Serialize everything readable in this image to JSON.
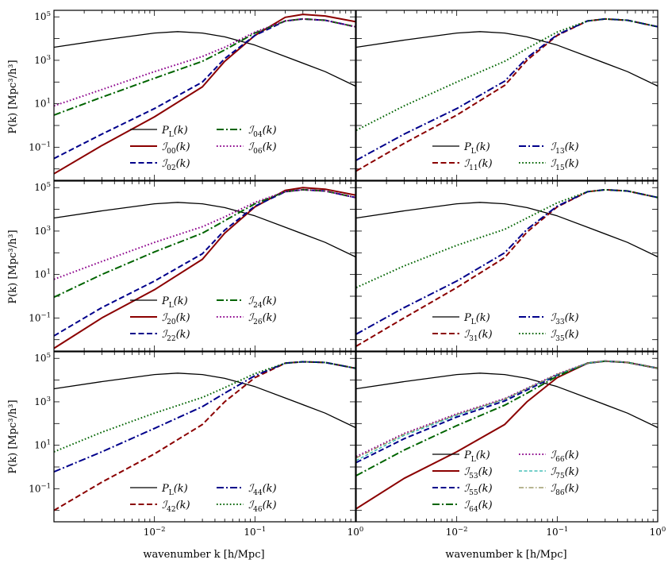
{
  "figure": {
    "x_label": "wavenumber k [h/Mpc]",
    "y_label": "P(k) [Mpc³/h³]",
    "x_ticks": [
      "10-2",
      "10-1",
      "100"
    ],
    "y_ticks": [
      "10-1",
      "101",
      "103",
      "105"
    ]
  },
  "chart_data": [
    {
      "type": "line",
      "panel": "top-left",
      "xscale": "log",
      "yscale": "log",
      "xlim": [
        0.001,
        1
      ],
      "ylim": [
        0.003,
        200000
      ],
      "legend_ncol": 2,
      "series": [
        {
          "name": "P_L(k)",
          "label_main": "P",
          "label_sub": "L",
          "style": "solid",
          "color": "#000000",
          "x": [
            0.001,
            0.003,
            0.01,
            0.017,
            0.03,
            0.05,
            0.1,
            0.2,
            0.5,
            1
          ],
          "y": [
            4000,
            8500,
            18000,
            21000,
            18000,
            12000,
            5000,
            1500,
            300,
            65
          ]
        },
        {
          "name": "I00(k)",
          "label_main": "ℐ",
          "label_sub": "00",
          "style": "solid",
          "color": "#8b0000",
          "x": [
            0.001,
            0.003,
            0.01,
            0.03,
            0.05,
            0.1,
            0.2,
            0.3,
            0.5,
            1
          ],
          "y": [
            0.006,
            0.12,
            2.5,
            60,
            900,
            14000,
            95000,
            130000,
            110000,
            60000
          ]
        },
        {
          "name": "I02(k)",
          "label_main": "ℐ",
          "label_sub": "02",
          "style": "dashed",
          "color": "#00008b",
          "x": [
            0.001,
            0.003,
            0.01,
            0.03,
            0.05,
            0.1,
            0.2,
            0.3,
            0.5,
            1
          ],
          "y": [
            0.03,
            0.4,
            6,
            100,
            1200,
            14000,
            65000,
            80000,
            70000,
            35000
          ]
        },
        {
          "name": "I04(k)",
          "label_main": "ℐ",
          "label_sub": "04",
          "style": "dashdot",
          "color": "#006400",
          "x": [
            0.001,
            0.003,
            0.01,
            0.03,
            0.05,
            0.1,
            0.2,
            0.3,
            0.5,
            1
          ],
          "y": [
            3,
            20,
            150,
            900,
            3000,
            18000,
            65000,
            80000,
            70000,
            35000
          ]
        },
        {
          "name": "I06(k)",
          "label_main": "ℐ",
          "label_sub": "06",
          "style": "dotted",
          "color": "#8b008b",
          "x": [
            0.001,
            0.003,
            0.01,
            0.03,
            0.05,
            0.1,
            0.2,
            0.3,
            0.5,
            1
          ],
          "y": [
            8,
            45,
            300,
            1500,
            4000,
            20000,
            65000,
            80000,
            70000,
            35000
          ]
        }
      ]
    },
    {
      "type": "line",
      "panel": "top-right",
      "xscale": "log",
      "yscale": "log",
      "xlim": [
        0.001,
        1
      ],
      "ylim": [
        0.003,
        200000
      ],
      "legend_ncol": 2,
      "series": [
        {
          "name": "P_L(k)",
          "label_main": "P",
          "label_sub": "L",
          "style": "solid",
          "color": "#000000",
          "x": [
            0.001,
            0.003,
            0.01,
            0.017,
            0.03,
            0.05,
            0.1,
            0.2,
            0.5,
            1
          ],
          "y": [
            4000,
            8500,
            18000,
            21000,
            18000,
            12000,
            5000,
            1500,
            300,
            65
          ]
        },
        {
          "name": "I11(k)",
          "label_main": "ℐ",
          "label_sub": "11",
          "style": "dashed",
          "color": "#8b0000",
          "x": [
            0.001,
            0.003,
            0.01,
            0.03,
            0.05,
            0.1,
            0.2,
            0.3,
            0.5,
            1
          ],
          "y": [
            0.008,
            0.15,
            3,
            70,
            1000,
            14000,
            65000,
            80000,
            70000,
            35000
          ]
        },
        {
          "name": "I13(k)",
          "label_main": "ℐ",
          "label_sub": "13",
          "style": "dashdot",
          "color": "#00008b",
          "x": [
            0.001,
            0.003,
            0.01,
            0.03,
            0.05,
            0.1,
            0.2,
            0.3,
            0.5,
            1
          ],
          "y": [
            0.025,
            0.4,
            6,
            110,
            1300,
            15000,
            65000,
            80000,
            70000,
            35000
          ]
        },
        {
          "name": "I15(k)",
          "label_main": "ℐ",
          "label_sub": "15",
          "style": "dotted",
          "color": "#006400",
          "x": [
            0.001,
            0.003,
            0.01,
            0.03,
            0.05,
            0.1,
            0.2,
            0.3,
            0.5,
            1
          ],
          "y": [
            0.6,
            8,
            100,
            900,
            3500,
            20000,
            65000,
            80000,
            70000,
            35000
          ]
        }
      ]
    },
    {
      "type": "line",
      "panel": "middle-left",
      "xscale": "log",
      "yscale": "log",
      "xlim": [
        0.001,
        1
      ],
      "ylim": [
        0.003,
        200000
      ],
      "legend_ncol": 2,
      "series": [
        {
          "name": "P_L(k)",
          "label_main": "P",
          "label_sub": "L",
          "style": "solid",
          "color": "#000000",
          "x": [
            0.001,
            0.003,
            0.01,
            0.017,
            0.03,
            0.05,
            0.1,
            0.2,
            0.5,
            1
          ],
          "y": [
            4000,
            8500,
            18000,
            21000,
            18000,
            12000,
            5000,
            1500,
            300,
            65
          ]
        },
        {
          "name": "I20(k)",
          "label_main": "ℐ",
          "label_sub": "20",
          "style": "solid",
          "color": "#8b0000",
          "x": [
            0.001,
            0.003,
            0.01,
            0.03,
            0.05,
            0.1,
            0.2,
            0.3,
            0.5,
            1
          ],
          "y": [
            0.004,
            0.1,
            2,
            50,
            800,
            13000,
            75000,
            100000,
            85000,
            45000
          ]
        },
        {
          "name": "I22(k)",
          "label_main": "ℐ",
          "label_sub": "22",
          "style": "dashed",
          "color": "#00008b",
          "x": [
            0.001,
            0.003,
            0.01,
            0.03,
            0.05,
            0.1,
            0.2,
            0.3,
            0.5,
            1
          ],
          "y": [
            0.015,
            0.3,
            5,
            90,
            1100,
            14000,
            65000,
            80000,
            70000,
            35000
          ]
        },
        {
          "name": "I24(k)",
          "label_main": "ℐ",
          "label_sub": "24",
          "style": "dashdot",
          "color": "#006400",
          "x": [
            0.001,
            0.003,
            0.01,
            0.03,
            0.05,
            0.1,
            0.2,
            0.3,
            0.5,
            1
          ],
          "y": [
            0.9,
            10,
            110,
            800,
            3000,
            18000,
            65000,
            80000,
            70000,
            35000
          ]
        },
        {
          "name": "I26(k)",
          "label_main": "ℐ",
          "label_sub": "26",
          "style": "dotted",
          "color": "#8b008b",
          "x": [
            0.001,
            0.003,
            0.01,
            0.03,
            0.05,
            0.1,
            0.2,
            0.3,
            0.5,
            1
          ],
          "y": [
            6,
            40,
            300,
            1600,
            4500,
            21000,
            65000,
            80000,
            70000,
            35000
          ]
        }
      ]
    },
    {
      "type": "line",
      "panel": "middle-right",
      "xscale": "log",
      "yscale": "log",
      "xlim": [
        0.001,
        1
      ],
      "ylim": [
        0.003,
        200000
      ],
      "legend_ncol": 2,
      "series": [
        {
          "name": "P_L(k)",
          "label_main": "P",
          "label_sub": "L",
          "style": "solid",
          "color": "#000000",
          "x": [
            0.001,
            0.003,
            0.01,
            0.017,
            0.03,
            0.05,
            0.1,
            0.2,
            0.5,
            1
          ],
          "y": [
            4000,
            8500,
            18000,
            21000,
            18000,
            12000,
            5000,
            1500,
            300,
            65
          ]
        },
        {
          "name": "I31(k)",
          "label_main": "ℐ",
          "label_sub": "31",
          "style": "dashed",
          "color": "#8b0000",
          "x": [
            0.001,
            0.003,
            0.01,
            0.03,
            0.05,
            0.1,
            0.2,
            0.3,
            0.5,
            1
          ],
          "y": [
            0.005,
            0.1,
            2.5,
            60,
            900,
            13000,
            65000,
            80000,
            70000,
            35000
          ]
        },
        {
          "name": "I33(k)",
          "label_main": "ℐ",
          "label_sub": "33",
          "style": "dashdot",
          "color": "#00008b",
          "x": [
            0.001,
            0.003,
            0.01,
            0.03,
            0.05,
            0.1,
            0.2,
            0.3,
            0.5,
            1
          ],
          "y": [
            0.018,
            0.3,
            5,
            100,
            1200,
            14000,
            65000,
            80000,
            70000,
            35000
          ]
        },
        {
          "name": "I35(k)",
          "label_main": "ℐ",
          "label_sub": "35",
          "style": "dotted",
          "color": "#006400",
          "x": [
            0.001,
            0.003,
            0.01,
            0.03,
            0.05,
            0.1,
            0.2,
            0.3,
            0.5,
            1
          ],
          "y": [
            2.5,
            25,
            220,
            1200,
            4000,
            20000,
            65000,
            80000,
            70000,
            35000
          ]
        }
      ]
    },
    {
      "type": "line",
      "panel": "bottom-left",
      "xscale": "log",
      "yscale": "log",
      "xlim": [
        0.001,
        1
      ],
      "ylim": [
        0.003,
        200000
      ],
      "legend_ncol": 2,
      "series": [
        {
          "name": "P_L(k)",
          "label_main": "P",
          "label_sub": "L",
          "style": "solid",
          "color": "#000000",
          "x": [
            0.001,
            0.003,
            0.01,
            0.017,
            0.03,
            0.05,
            0.1,
            0.2,
            0.5,
            1
          ],
          "y": [
            4000,
            8500,
            18000,
            21000,
            18000,
            12000,
            5000,
            1500,
            300,
            65
          ]
        },
        {
          "name": "I42(k)",
          "label_main": "ℐ",
          "label_sub": "42",
          "style": "dashed",
          "color": "#8b0000",
          "x": [
            0.001,
            0.003,
            0.01,
            0.03,
            0.05,
            0.1,
            0.2,
            0.3,
            0.5,
            1
          ],
          "y": [
            0.01,
            0.2,
            4,
            90,
            1000,
            13000,
            60000,
            70000,
            65000,
            35000
          ]
        },
        {
          "name": "I44(k)",
          "label_main": "ℐ",
          "label_sub": "44",
          "style": "dashdot",
          "color": "#00008b",
          "x": [
            0.001,
            0.003,
            0.01,
            0.03,
            0.05,
            0.1,
            0.2,
            0.3,
            0.5,
            1
          ],
          "y": [
            0.6,
            5,
            60,
            600,
            2500,
            16000,
            60000,
            70000,
            65000,
            35000
          ]
        },
        {
          "name": "I46(k)",
          "label_main": "ℐ",
          "label_sub": "46",
          "style": "dotted",
          "color": "#006400",
          "x": [
            0.001,
            0.003,
            0.01,
            0.03,
            0.05,
            0.1,
            0.2,
            0.3,
            0.5,
            1
          ],
          "y": [
            5,
            40,
            300,
            1600,
            4500,
            20000,
            60000,
            70000,
            65000,
            35000
          ]
        }
      ]
    },
    {
      "type": "line",
      "panel": "bottom-right",
      "xscale": "log",
      "yscale": "log",
      "xlim": [
        0.001,
        1
      ],
      "ylim": [
        0.003,
        200000
      ],
      "legend_ncol": 2,
      "series": [
        {
          "name": "P_L(k)",
          "label_main": "P",
          "label_sub": "L",
          "style": "solid",
          "color": "#000000",
          "x": [
            0.001,
            0.003,
            0.01,
            0.017,
            0.03,
            0.05,
            0.1,
            0.2,
            0.5,
            1
          ],
          "y": [
            4000,
            8500,
            18000,
            21000,
            18000,
            12000,
            5000,
            1500,
            300,
            65
          ]
        },
        {
          "name": "I53(k)",
          "label_main": "ℐ",
          "label_sub": "53",
          "style": "solid",
          "color": "#8b0000",
          "x": [
            0.001,
            0.003,
            0.01,
            0.03,
            0.05,
            0.1,
            0.2,
            0.3,
            0.5,
            1
          ],
          "y": [
            0.012,
            0.3,
            5,
            90,
            1000,
            13000,
            60000,
            75000,
            65000,
            35000
          ]
        },
        {
          "name": "I55(k)",
          "label_main": "ℐ",
          "label_sub": "55",
          "style": "dashed",
          "color": "#00008b",
          "x": [
            0.001,
            0.003,
            0.01,
            0.03,
            0.05,
            0.1,
            0.2,
            0.3,
            0.5,
            1
          ],
          "y": [
            1.6,
            20,
            200,
            1100,
            3500,
            17000,
            60000,
            75000,
            65000,
            35000
          ]
        },
        {
          "name": "I64(k)",
          "label_main": "ℐ",
          "label_sub": "64",
          "style": "dashdot",
          "color": "#006400",
          "x": [
            0.001,
            0.003,
            0.01,
            0.03,
            0.05,
            0.1,
            0.2,
            0.3,
            0.5,
            1
          ],
          "y": [
            0.4,
            6,
            80,
            700,
            2500,
            15000,
            60000,
            75000,
            65000,
            35000
          ]
        },
        {
          "name": "I66(k)",
          "label_main": "ℐ",
          "label_sub": "66",
          "style": "dotted",
          "color": "#8b008b",
          "x": [
            0.001,
            0.003,
            0.01,
            0.03,
            0.05,
            0.1,
            0.2,
            0.3,
            0.5,
            1
          ],
          "y": [
            3,
            35,
            280,
            1400,
            4200,
            19000,
            60000,
            75000,
            65000,
            35000
          ]
        },
        {
          "name": "I75(k)",
          "label_main": "ℐ",
          "label_sub": "75",
          "style": "dashed-thin",
          "color": "#20b2aa",
          "x": [
            0.001,
            0.003,
            0.01,
            0.03,
            0.05,
            0.1,
            0.2,
            0.3,
            0.5,
            1
          ],
          "y": [
            2,
            28,
            240,
            1300,
            4000,
            18000,
            60000,
            75000,
            65000,
            35000
          ]
        },
        {
          "name": "I86(k)",
          "label_main": "ℐ",
          "label_sub": "86",
          "style": "dashdot-thin",
          "color": "#8b864e",
          "x": [
            0.001,
            0.003,
            0.01,
            0.03,
            0.05,
            0.1,
            0.2,
            0.3,
            0.5,
            1
          ],
          "y": [
            2.6,
            32,
            260,
            1350,
            4100,
            18500,
            60000,
            75000,
            65000,
            35000
          ]
        }
      ]
    }
  ]
}
